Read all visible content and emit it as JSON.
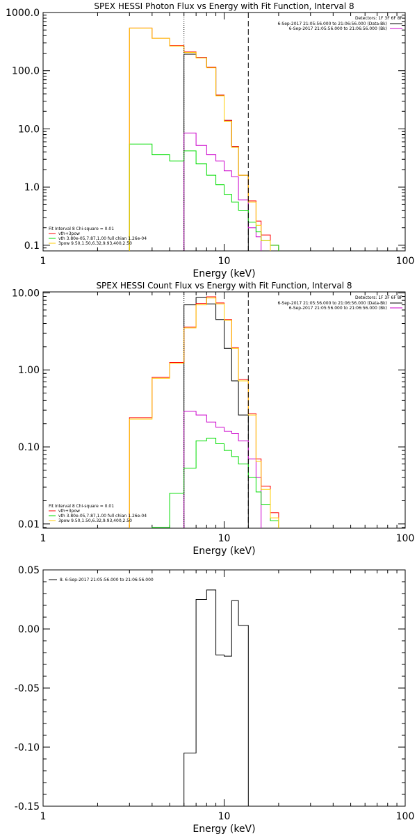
{
  "chart_data": [
    {
      "type": "line",
      "title": "SPEX HESSI Photon Flux vs Energy with Fit Function, Interval 8",
      "xlabel": "Energy (keV)",
      "ylabel": "",
      "xscale": "log",
      "yscale": "log",
      "xlim": [
        1,
        100
      ],
      "ylim": [
        0.08,
        1000
      ],
      "xticks": [
        "1",
        "10",
        "100"
      ],
      "yticks": [
        "0.1",
        "1.0",
        "10.0",
        "100.0",
        "1000.0"
      ],
      "top_legend": {
        "header": "Detectors: 1F 3F 6F 8F",
        "lines": [
          "6-Sep-2017 21:05:56.000 to 21:06:56.000 (Data-Bk)",
          "6-Sep-2017 21:05:56.000 to 21:06:56.000 (Bk)"
        ],
        "colors": [
          "#000000",
          "#cc00cc"
        ]
      },
      "bottom_legend": {
        "header": "Fit Interval 8   Chi-square = 0.01",
        "lines": [
          "vth+3pow",
          "vth 3.80e-05,7.87,1.00  full chian 1.26e-04",
          "3pow 9.50,1.50,6.32,9.93,400,2.50"
        ],
        "colors": [
          "#ff0000",
          "#00dd00",
          "#ffcc00"
        ]
      },
      "markers": [
        6,
        13.6
      ],
      "edges": [
        3,
        4,
        5,
        6,
        7,
        8,
        9,
        10,
        11,
        12,
        13.6,
        15,
        16,
        18,
        20
      ],
      "series": [
        {
          "name": "Data-Bk",
          "color": "#000000",
          "start": 3,
          "values": [
            192,
            168,
            115,
            38,
            14,
            5,
            1.6,
            null,
            null,
            null
          ]
        },
        {
          "name": "Bk",
          "color": "#cc00cc",
          "start": 3,
          "values": [
            8.5,
            5.2,
            3.6,
            2.8,
            1.9,
            1.5,
            0.6,
            0.2,
            0.14,
            null
          ]
        },
        {
          "name": "vth+3pow",
          "color": "#ff0000",
          "start": 0,
          "values": [
            540,
            360,
            270,
            210,
            168,
            115,
            38,
            14,
            5,
            1.6,
            0.58,
            0.26,
            0.15,
            0.1
          ]
        },
        {
          "name": "vth",
          "color": "#00dd00",
          "start": 0,
          "values": [
            5.5,
            3.6,
            2.8,
            4.2,
            2.5,
            1.6,
            1.1,
            0.75,
            0.55,
            0.4,
            0.25,
            0.17,
            0.12,
            0.1
          ]
        },
        {
          "name": "3pow",
          "color": "#ffcc00",
          "start": 0,
          "values": [
            540,
            360,
            265,
            205,
            165,
            112,
            37,
            13.5,
            4.8,
            1.6,
            0.55,
            0.22,
            0.12,
            null
          ]
        }
      ]
    },
    {
      "type": "line",
      "title": "SPEX HESSI Count Flux vs Energy with Fit Function, Interval 8",
      "xlabel": "Energy (keV)",
      "ylabel": "",
      "xscale": "log",
      "yscale": "log",
      "xlim": [
        1,
        100
      ],
      "ylim": [
        0.0088,
        10.3
      ],
      "xticks": [
        "1",
        "10",
        "100"
      ],
      "yticks": [
        "0.01",
        "0.10",
        "1.00",
        "10.00"
      ],
      "top_legend": {
        "header": "Detectors: 1F 3F 6F 8F",
        "lines": [
          "6-Sep-2017 21:05:56.000 to 21:06:56.000 (Data-Bk)",
          "6-Sep-2017 21:05:56.000 to 21:06:56.000 (Bk)"
        ],
        "colors": [
          "#000000",
          "#cc00cc"
        ]
      },
      "bottom_legend": {
        "header": "Fit Interval 8   Chi-square = 0.01",
        "lines": [
          "vth+3pow",
          "vth 3.80e-05,7.87,1.00  full chian 1.26e-04",
          "3pow 9.50,1.50,6.32,9.93,400,2.50"
        ],
        "colors": [
          "#ff0000",
          "#00dd00",
          "#ffcc00"
        ]
      },
      "markers": [
        6,
        13.6
      ],
      "edges": [
        3,
        4,
        5,
        6,
        7,
        8,
        9,
        10,
        11,
        12,
        13.6,
        15,
        16,
        18,
        20
      ],
      "series": [
        {
          "name": "Data-Bk",
          "color": "#000000",
          "start": 3,
          "values": [
            7.0,
            8.7,
            7.2,
            4.5,
            1.9,
            0.72,
            0.26,
            null,
            null,
            null
          ]
        },
        {
          "name": "Bk",
          "color": "#cc00cc",
          "start": 3,
          "values": [
            0.29,
            0.26,
            0.21,
            0.18,
            0.16,
            0.15,
            0.12,
            0.07,
            0.04,
            null
          ]
        },
        {
          "name": "vth+3pow",
          "color": "#ff0000",
          "start": 0,
          "values": [
            0.24,
            0.8,
            1.25,
            3.6,
            7.3,
            8.9,
            7.4,
            4.5,
            1.95,
            0.75,
            0.27,
            0.07,
            0.031,
            0.014
          ]
        },
        {
          "name": "vth",
          "color": "#00dd00",
          "start": 0,
          "values": [
            null,
            0.009,
            0.025,
            0.053,
            0.12,
            0.13,
            0.11,
            0.09,
            0.075,
            0.06,
            0.04,
            0.026,
            0.018,
            0.011
          ]
        },
        {
          "name": "3pow",
          "color": "#ffcc00",
          "start": 0,
          "values": [
            0.23,
            0.78,
            1.22,
            3.5,
            7.0,
            8.6,
            7.2,
            4.4,
            1.9,
            0.72,
            0.26,
            0.065,
            0.028,
            0.012
          ]
        }
      ]
    },
    {
      "type": "line",
      "title": "",
      "xlabel": "Energy (keV)",
      "ylabel": "",
      "xscale": "log",
      "yscale": "linear",
      "xlim": [
        1,
        100
      ],
      "ylim": [
        -0.15,
        0.05
      ],
      "xticks": [
        "1",
        "10",
        "100"
      ],
      "yticks": [
        "-0.15",
        "-0.10",
        "-0.05",
        "0.00",
        "0.05"
      ],
      "legend": {
        "lines": [
          "8.  6-Sep-2017 21:05:56.000 to 21:06:56.000"
        ],
        "colors": [
          "#000000"
        ]
      },
      "edges": [
        6,
        7,
        8,
        9,
        10,
        11,
        12,
        13.6
      ],
      "series": [
        {
          "name": "",
          "color": "#000000",
          "values": [
            -0.105,
            0.025,
            0.033,
            -0.022,
            -0.023,
            0.024,
            0.003
          ]
        }
      ]
    }
  ]
}
